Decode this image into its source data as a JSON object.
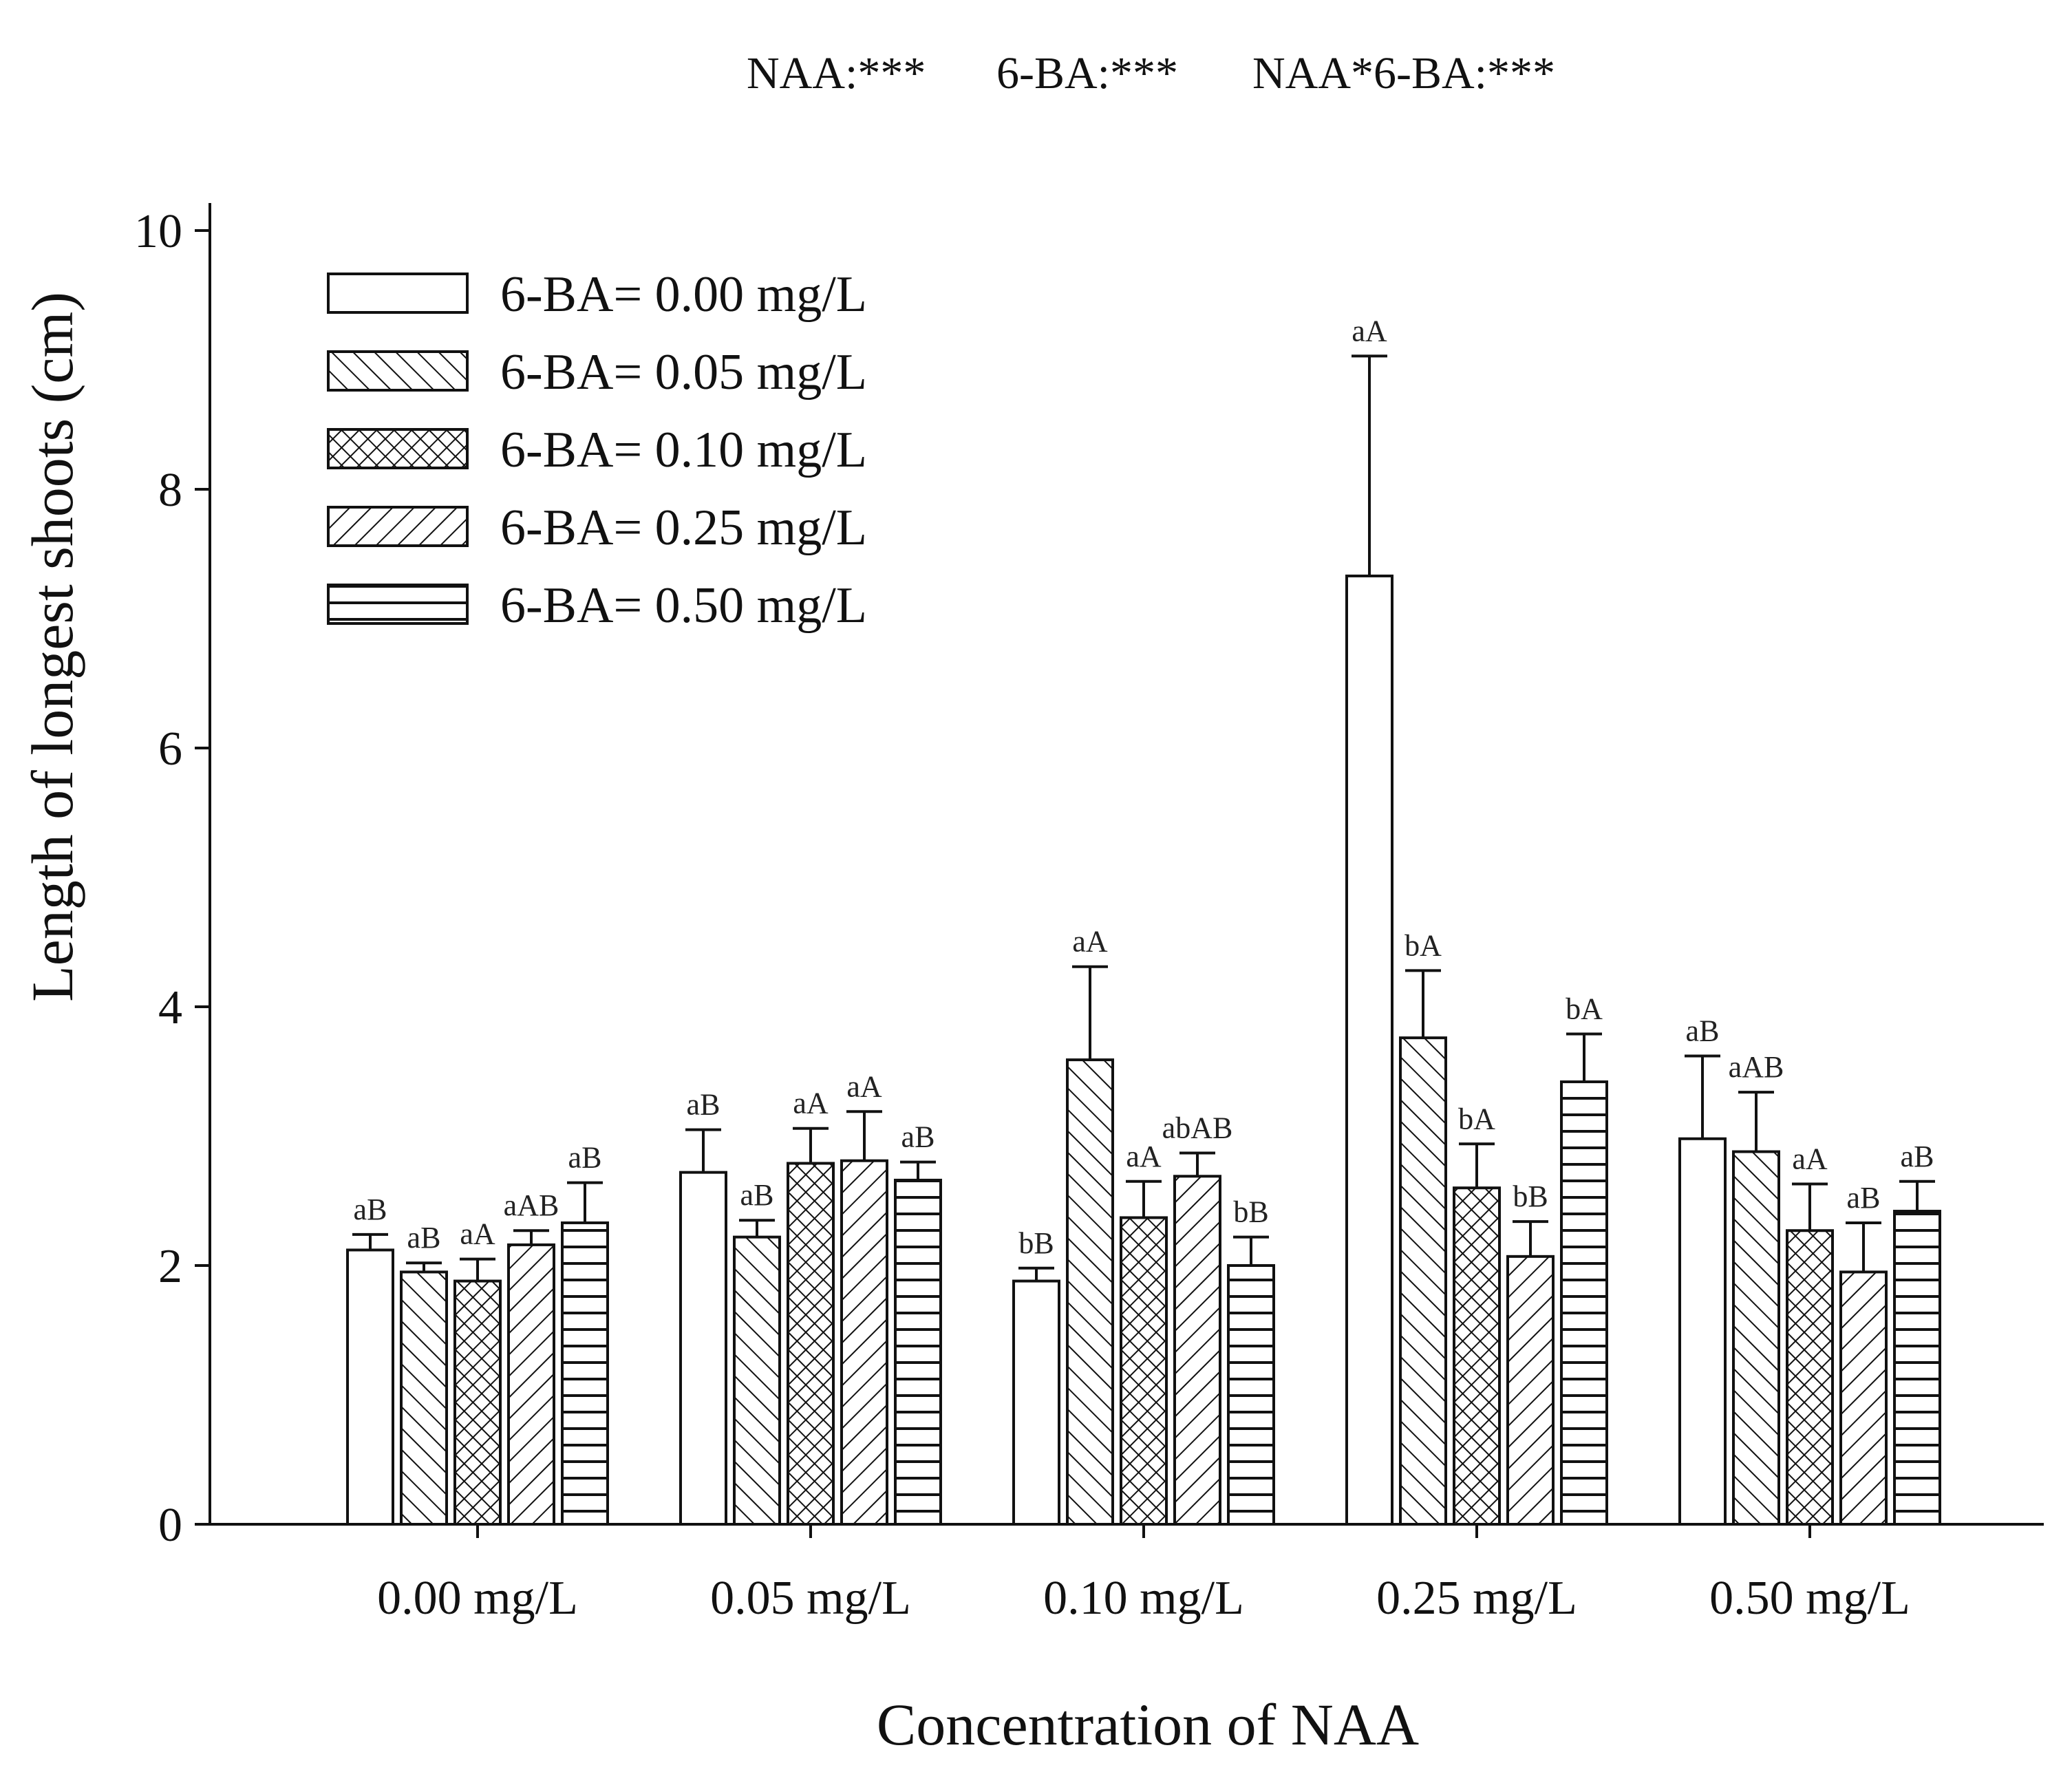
{
  "chart_data": {
    "type": "bar",
    "title": "",
    "annotation": [
      "NAA:***",
      "6-BA:***",
      "NAA*6-BA:***"
    ],
    "xlabel": "Concentration of  NAA",
    "ylabel": "Length of longest shoots (cm)",
    "ylim": [
      0,
      10
    ],
    "yticks": [
      "0",
      "2",
      "4",
      "6",
      "8",
      "10"
    ],
    "categories": [
      "0.00 mg/L",
      "0.05 mg/L",
      "0.10 mg/L",
      "0.25 mg/L",
      "0.50 mg/L"
    ],
    "legend_position": "top-left",
    "grid": false,
    "series": [
      {
        "name": "6-BA= 0.00 mg/L",
        "pattern": "none",
        "values": [
          2.12,
          2.72,
          1.88,
          7.33,
          2.98
        ],
        "errors": [
          0.12,
          0.33,
          0.1,
          1.7,
          0.64
        ],
        "labels": [
          "aB",
          "aB",
          "bB",
          "aA",
          "aB"
        ]
      },
      {
        "name": "6-BA= 0.05 mg/L",
        "pattern": "diagonal",
        "values": [
          1.95,
          2.22,
          3.59,
          3.76,
          2.88
        ],
        "errors": [
          0.07,
          0.13,
          0.72,
          0.52,
          0.46
        ],
        "labels": [
          "aB",
          "aB",
          "aA",
          "bA",
          "aAB"
        ]
      },
      {
        "name": "6-BA= 0.10 mg/L",
        "pattern": "crosshatch",
        "values": [
          1.88,
          2.79,
          2.37,
          2.6,
          2.27
        ],
        "errors": [
          0.17,
          0.27,
          0.28,
          0.34,
          0.36
        ],
        "labels": [
          "aA",
          "aA",
          "aA",
          "bA",
          "aA"
        ]
      },
      {
        "name": "6-BA= 0.25 mg/L",
        "pattern": "backdiagonal",
        "values": [
          2.16,
          2.81,
          2.69,
          2.07,
          1.95
        ],
        "errors": [
          0.11,
          0.38,
          0.18,
          0.27,
          0.38
        ],
        "labels": [
          "aAB",
          "aA",
          "abAB",
          "bB",
          "aB"
        ]
      },
      {
        "name": "6-BA= 0.50 mg/L",
        "pattern": "horizontal",
        "values": [
          2.33,
          2.66,
          2.0,
          3.42,
          2.42
        ],
        "errors": [
          0.31,
          0.14,
          0.22,
          0.37,
          0.23
        ],
        "labels": [
          "aB",
          "aB",
          "bB",
          "bA",
          "aB"
        ]
      }
    ]
  }
}
